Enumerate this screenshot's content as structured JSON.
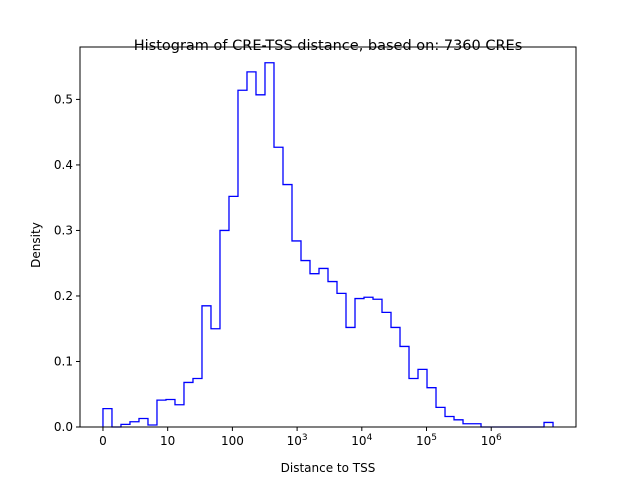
{
  "chart_data": {
    "type": "histogram-step",
    "title": "Histogram of CRE-TSS distance, based on: 7360 CREs",
    "xlabel": "Distance to TSS",
    "ylabel": "Density",
    "x_scale": "log10(distance + 1)",
    "xlim": [
      -0.355,
      7.31
    ],
    "ylim": [
      0,
      0.58
    ],
    "x_ticks": [
      {
        "value": 0,
        "label": "0",
        "exp": ""
      },
      {
        "value": 1,
        "label": "10",
        "exp": ""
      },
      {
        "value": 2,
        "label": "100",
        "exp": ""
      },
      {
        "value": 3,
        "label": "10",
        "exp": "3"
      },
      {
        "value": 4,
        "label": "10",
        "exp": "4"
      },
      {
        "value": 5,
        "label": "10",
        "exp": "5"
      },
      {
        "value": 6,
        "label": "10",
        "exp": "6"
      }
    ],
    "y_ticks": [
      {
        "value": 0,
        "label": "0.0"
      },
      {
        "value": 0.1,
        "label": "0.1"
      },
      {
        "value": 0.2,
        "label": "0.2"
      },
      {
        "value": 0.3,
        "label": "0.3"
      },
      {
        "value": 0.4,
        "label": "0.4"
      },
      {
        "value": 0.5,
        "label": "0.5"
      }
    ],
    "bin_start": 0,
    "bin_width": 0.1391,
    "values": [
      0.028,
      0,
      0.004,
      0.008,
      0.013,
      0.003,
      0.041,
      0.042,
      0.034,
      0.068,
      0.074,
      0.185,
      0.15,
      0.3,
      0.352,
      0.514,
      0.542,
      0.507,
      0.556,
      0.427,
      0.37,
      0.284,
      0.254,
      0.234,
      0.242,
      0.222,
      0.204,
      0.152,
      0.196,
      0.198,
      0.195,
      0.175,
      0.152,
      0.123,
      0.074,
      0.088,
      0.06,
      0.03,
      0.016,
      0.011,
      0.005,
      0.005,
      0,
      0,
      0,
      0,
      0,
      0,
      0,
      0.007
    ],
    "line_color": "#0000ff",
    "grid": false
  }
}
